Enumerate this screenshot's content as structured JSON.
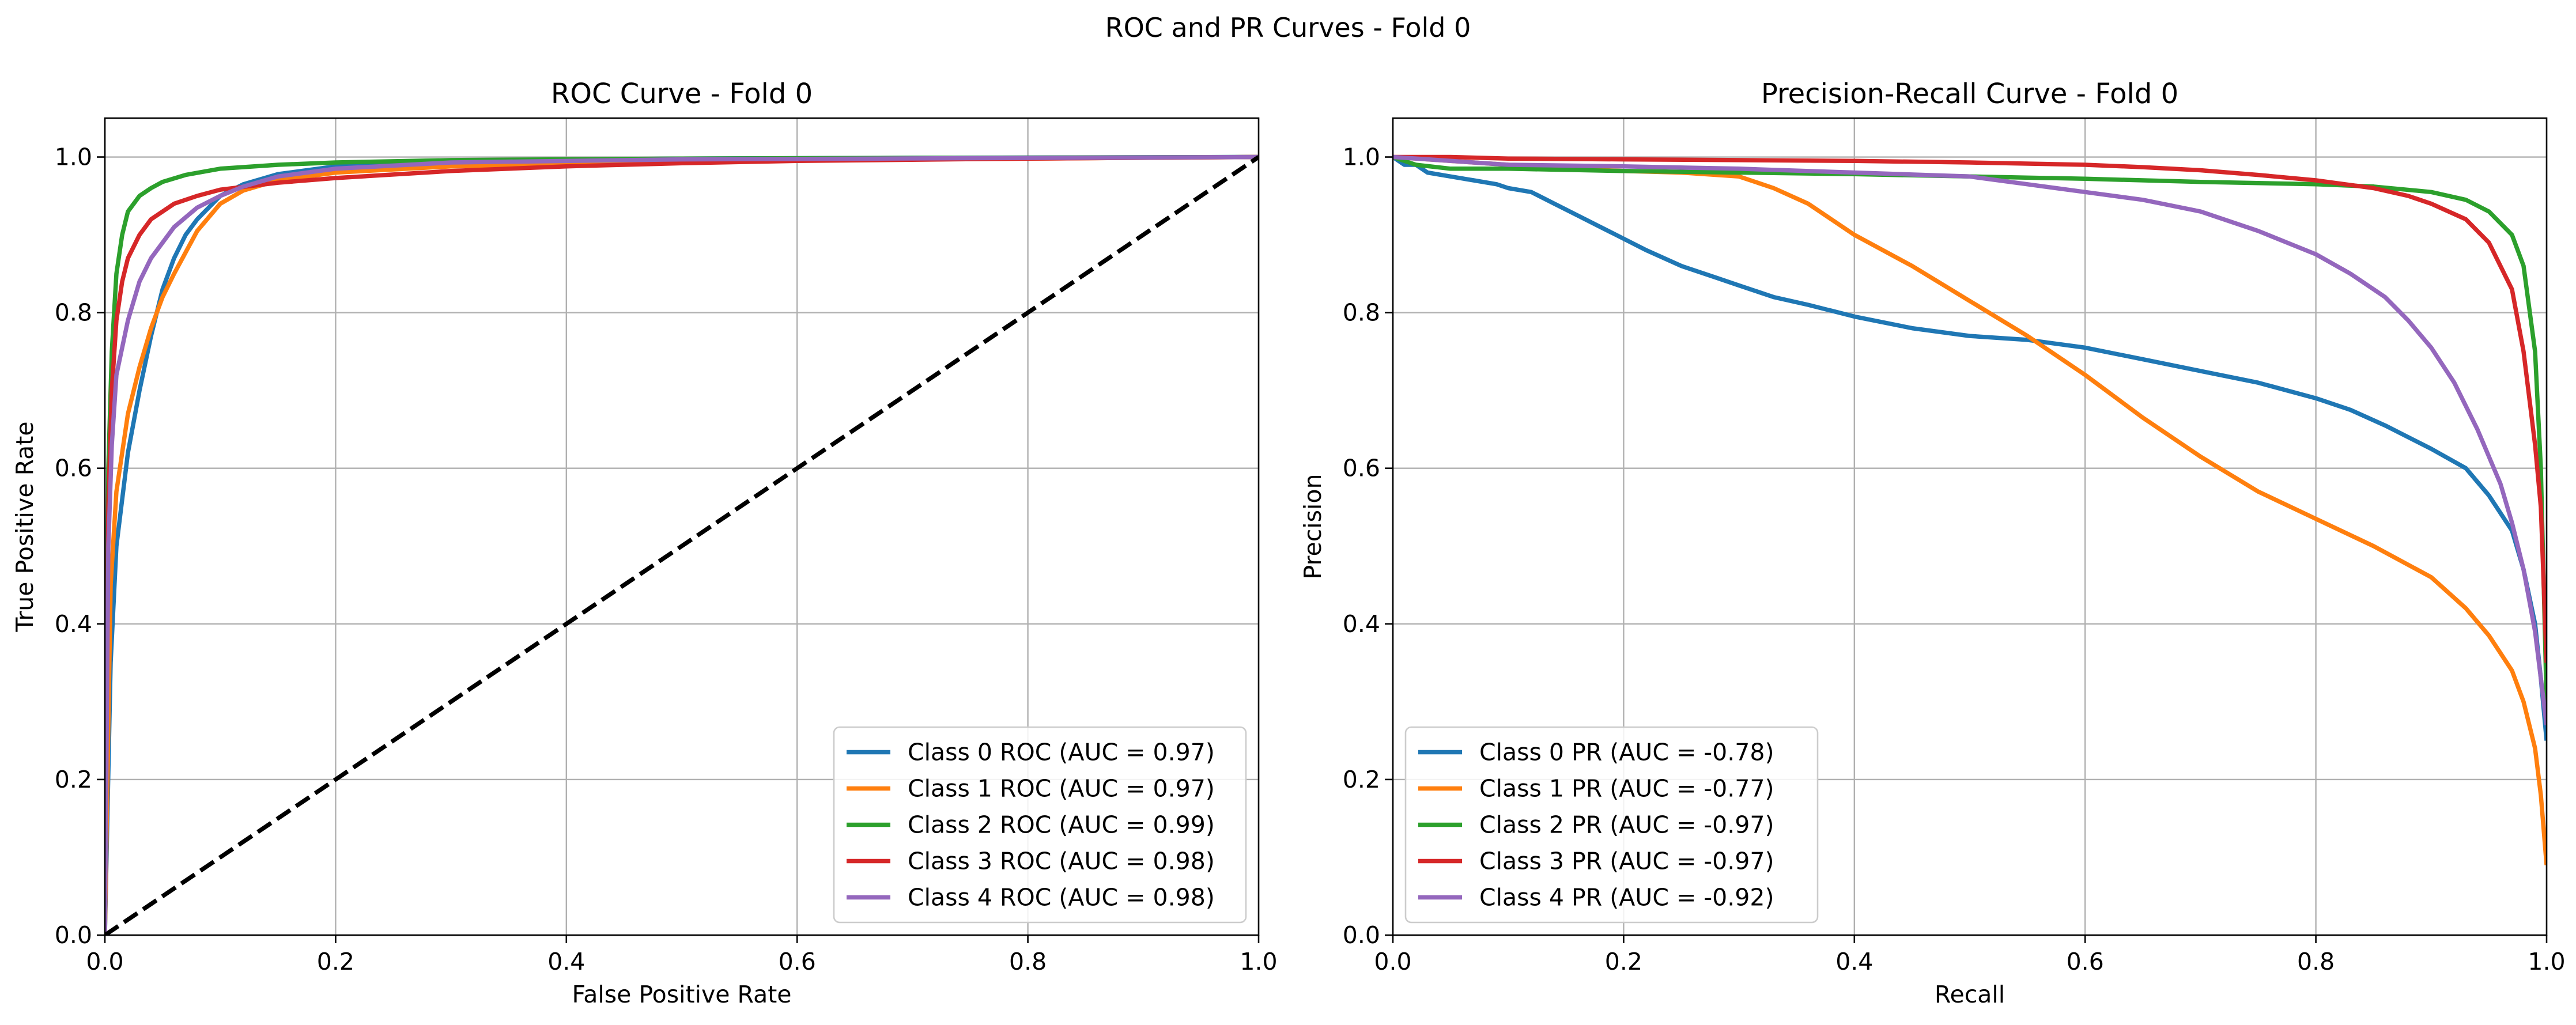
{
  "figure": {
    "suptitle": "ROC and PR Curves - Fold 0"
  },
  "chart_data": [
    {
      "type": "line",
      "title": "ROC Curve - Fold 0",
      "xlabel": "False Positive Rate",
      "ylabel": "True Positive Rate",
      "xlim": [
        0.0,
        1.0
      ],
      "ylim": [
        0.0,
        1.05
      ],
      "xticks": [
        "0.0",
        "0.2",
        "0.4",
        "0.6",
        "0.8",
        "1.0"
      ],
      "yticks": [
        "0.0",
        "0.2",
        "0.4",
        "0.6",
        "0.8",
        "1.0"
      ],
      "grid": true,
      "legend_position": "lower right",
      "series": [
        {
          "name": "Class 0 ROC (AUC = 0.97)",
          "color": "#1f77b4",
          "x": [
            0,
            0.005,
            0.01,
            0.02,
            0.03,
            0.04,
            0.05,
            0.06,
            0.07,
            0.08,
            0.1,
            0.12,
            0.15,
            0.2,
            0.3,
            0.5,
            0.7,
            1.0
          ],
          "y": [
            0,
            0.35,
            0.5,
            0.62,
            0.7,
            0.77,
            0.83,
            0.87,
            0.9,
            0.92,
            0.95,
            0.965,
            0.978,
            0.988,
            0.995,
            0.998,
            0.999,
            1.0
          ]
        },
        {
          "name": "Class 1 ROC (AUC = 0.97)",
          "color": "#ff7f0e",
          "x": [
            0,
            0.005,
            0.01,
            0.02,
            0.03,
            0.04,
            0.05,
            0.06,
            0.08,
            0.1,
            0.12,
            0.15,
            0.2,
            0.3,
            0.5,
            0.7,
            1.0
          ],
          "y": [
            0,
            0.45,
            0.57,
            0.67,
            0.73,
            0.78,
            0.82,
            0.85,
            0.905,
            0.94,
            0.957,
            0.97,
            0.98,
            0.988,
            0.994,
            0.997,
            1.0
          ]
        },
        {
          "name": "Class 2 ROC (AUC = 0.99)",
          "color": "#2ca02c",
          "x": [
            0,
            0.003,
            0.006,
            0.01,
            0.015,
            0.02,
            0.03,
            0.04,
            0.05,
            0.07,
            0.1,
            0.15,
            0.2,
            0.3,
            0.5,
            1.0
          ],
          "y": [
            0,
            0.6,
            0.75,
            0.85,
            0.9,
            0.93,
            0.95,
            0.96,
            0.968,
            0.977,
            0.985,
            0.99,
            0.993,
            0.996,
            0.998,
            1.0
          ]
        },
        {
          "name": "Class 3 ROC (AUC = 0.98)",
          "color": "#d62728",
          "x": [
            0,
            0.003,
            0.006,
            0.01,
            0.015,
            0.02,
            0.03,
            0.04,
            0.06,
            0.08,
            0.1,
            0.15,
            0.2,
            0.3,
            0.4,
            0.5,
            0.6,
            0.8,
            1.0
          ],
          "y": [
            0,
            0.55,
            0.7,
            0.79,
            0.84,
            0.87,
            0.9,
            0.92,
            0.94,
            0.95,
            0.958,
            0.967,
            0.973,
            0.982,
            0.988,
            0.992,
            0.995,
            0.998,
            1.0
          ]
        },
        {
          "name": "Class 4 ROC (AUC = 0.98)",
          "color": "#9467bd",
          "x": [
            0,
            0.003,
            0.006,
            0.01,
            0.02,
            0.03,
            0.04,
            0.05,
            0.06,
            0.08,
            0.1,
            0.12,
            0.15,
            0.2,
            0.3,
            0.5,
            1.0
          ],
          "y": [
            0,
            0.5,
            0.63,
            0.72,
            0.79,
            0.84,
            0.87,
            0.89,
            0.91,
            0.935,
            0.95,
            0.962,
            0.975,
            0.985,
            0.993,
            0.997,
            1.0
          ]
        }
      ],
      "reference_line": {
        "color": "#000000",
        "dashed": true,
        "x": [
          0,
          1
        ],
        "y": [
          0,
          1
        ]
      }
    },
    {
      "type": "line",
      "title": "Precision-Recall Curve - Fold 0",
      "xlabel": "Recall",
      "ylabel": "Precision",
      "xlim": [
        0.0,
        1.0
      ],
      "ylim": [
        0.0,
        1.05
      ],
      "xticks": [
        "0.0",
        "0.2",
        "0.4",
        "0.6",
        "0.8",
        "1.0"
      ],
      "yticks": [
        "0.0",
        "0.2",
        "0.4",
        "0.6",
        "0.8",
        "1.0"
      ],
      "grid": true,
      "legend_position": "lower left",
      "series": [
        {
          "name": "Class 0 PR (AUC = -0.78)",
          "color": "#1f77b4",
          "x": [
            0.0,
            0.01,
            0.02,
            0.03,
            0.05,
            0.07,
            0.09,
            0.1,
            0.12,
            0.14,
            0.16,
            0.18,
            0.2,
            0.22,
            0.25,
            0.28,
            0.3,
            0.33,
            0.36,
            0.4,
            0.45,
            0.5,
            0.55,
            0.6,
            0.65,
            0.7,
            0.75,
            0.8,
            0.83,
            0.86,
            0.9,
            0.93,
            0.95,
            0.97,
            0.98,
            0.99,
            0.995,
            1.0
          ],
          "y": [
            1.0,
            0.99,
            0.99,
            0.98,
            0.975,
            0.97,
            0.965,
            0.96,
            0.955,
            0.94,
            0.925,
            0.91,
            0.895,
            0.88,
            0.86,
            0.845,
            0.835,
            0.82,
            0.81,
            0.795,
            0.78,
            0.77,
            0.765,
            0.755,
            0.74,
            0.725,
            0.71,
            0.69,
            0.675,
            0.655,
            0.625,
            0.6,
            0.565,
            0.52,
            0.47,
            0.4,
            0.33,
            0.25
          ]
        },
        {
          "name": "Class 1 PR (AUC = -0.77)",
          "color": "#ff7f0e",
          "x": [
            0.0,
            0.05,
            0.1,
            0.15,
            0.2,
            0.25,
            0.3,
            0.33,
            0.36,
            0.4,
            0.45,
            0.5,
            0.55,
            0.6,
            0.65,
            0.7,
            0.75,
            0.8,
            0.85,
            0.9,
            0.93,
            0.95,
            0.97,
            0.98,
            0.99,
            0.995,
            1.0
          ],
          "y": [
            1.0,
            0.995,
            0.99,
            0.985,
            0.982,
            0.98,
            0.975,
            0.96,
            0.94,
            0.9,
            0.86,
            0.815,
            0.77,
            0.72,
            0.665,
            0.615,
            0.57,
            0.535,
            0.5,
            0.46,
            0.42,
            0.385,
            0.34,
            0.3,
            0.24,
            0.18,
            0.09
          ]
        },
        {
          "name": "Class 2 PR (AUC = -0.97)",
          "color": "#2ca02c",
          "x": [
            0.0,
            0.02,
            0.05,
            0.1,
            0.2,
            0.3,
            0.4,
            0.5,
            0.6,
            0.7,
            0.8,
            0.85,
            0.9,
            0.93,
            0.95,
            0.97,
            0.98,
            0.99,
            0.995,
            1.0
          ],
          "y": [
            1.0,
            0.99,
            0.985,
            0.985,
            0.982,
            0.98,
            0.978,
            0.975,
            0.972,
            0.968,
            0.965,
            0.962,
            0.955,
            0.945,
            0.93,
            0.9,
            0.86,
            0.75,
            0.6,
            0.3
          ]
        },
        {
          "name": "Class 3 PR (AUC = -0.97)",
          "color": "#d62728",
          "x": [
            0.0,
            0.05,
            0.1,
            0.2,
            0.3,
            0.4,
            0.5,
            0.6,
            0.65,
            0.7,
            0.75,
            0.8,
            0.85,
            0.88,
            0.9,
            0.93,
            0.95,
            0.97,
            0.98,
            0.99,
            0.995,
            1.0
          ],
          "y": [
            1.0,
            1.0,
            0.998,
            0.997,
            0.996,
            0.995,
            0.993,
            0.99,
            0.987,
            0.983,
            0.977,
            0.97,
            0.96,
            0.95,
            0.94,
            0.92,
            0.89,
            0.83,
            0.75,
            0.63,
            0.55,
            0.35
          ]
        },
        {
          "name": "Class 4 PR (AUC = -0.92)",
          "color": "#9467bd",
          "x": [
            0.0,
            0.05,
            0.1,
            0.2,
            0.3,
            0.4,
            0.5,
            0.55,
            0.6,
            0.65,
            0.7,
            0.75,
            0.8,
            0.83,
            0.86,
            0.88,
            0.9,
            0.92,
            0.94,
            0.96,
            0.97,
            0.98,
            0.99,
            0.995,
            1.0
          ],
          "y": [
            1.0,
            0.995,
            0.99,
            0.988,
            0.985,
            0.98,
            0.975,
            0.965,
            0.955,
            0.945,
            0.93,
            0.905,
            0.875,
            0.85,
            0.82,
            0.79,
            0.755,
            0.71,
            0.65,
            0.58,
            0.53,
            0.47,
            0.39,
            0.33,
            0.27
          ]
        }
      ]
    }
  ]
}
